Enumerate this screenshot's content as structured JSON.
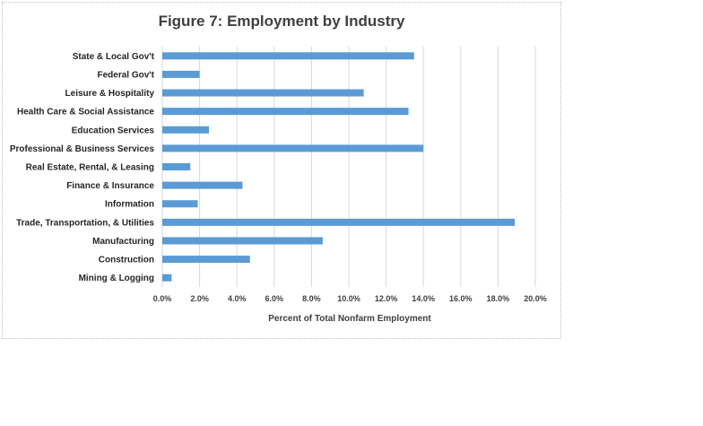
{
  "chart_data": {
    "type": "bar",
    "orientation": "horizontal",
    "title": "Figure 7: Employment by Industry",
    "xlabel": "Percent of Total Nonfarm Employment",
    "ylabel": "",
    "xlim": [
      0,
      20
    ],
    "ticks": [
      "0.0%",
      "2.0%",
      "4.0%",
      "6.0%",
      "8.0%",
      "10.0%",
      "12.0%",
      "14.0%",
      "16.0%",
      "18.0%",
      "20.0%"
    ],
    "categories": [
      "State & Local Gov't",
      "Federal Gov't",
      "Leisure & Hospitality",
      "Health Care & Social Assistance",
      "Education Services",
      "Professional & Business Services",
      "Real Estate, Rental, & Leasing",
      "Finance & Insurance",
      "Information",
      "Trade, Transportation, & Utilities",
      "Manufacturing",
      "Construction",
      "Mining & Logging"
    ],
    "values": [
      13.5,
      2.0,
      10.8,
      13.2,
      2.5,
      14.0,
      1.5,
      4.3,
      1.9,
      18.9,
      8.6,
      4.7,
      0.5
    ],
    "grid": "vertical",
    "legend": "none",
    "bar_color": "#5b9bd5"
  }
}
